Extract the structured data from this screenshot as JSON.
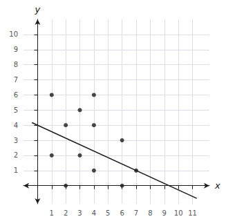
{
  "chart_data": {
    "type": "scatter",
    "xlabel": "x",
    "ylabel": "y",
    "xlim": [
      -1.0,
      12.2
    ],
    "ylim": [
      -1.2,
      11.0
    ],
    "xticks": [
      1,
      2,
      3,
      4,
      5,
      6,
      7,
      8,
      9,
      10,
      11
    ],
    "yticks": [
      1,
      2,
      3,
      4,
      5,
      6,
      7,
      8,
      9,
      10
    ],
    "grid": true,
    "series": [
      {
        "type": "line",
        "color": "#1a1a1a",
        "values": [
          [
            -0.4,
            4.171428571428
          ],
          [
            11.3,
            -0.842857142841
          ]
        ]
      },
      {
        "type": "scatter",
        "color": "#1a1a1a",
        "values": [
          [
            1,
            6
          ],
          [
            1,
            2
          ],
          [
            2,
            4
          ],
          [
            2,
            0
          ],
          [
            3,
            5
          ],
          [
            3,
            2
          ],
          [
            4,
            6
          ],
          [
            4,
            4
          ],
          [
            4,
            1
          ],
          [
            6,
            3
          ],
          [
            6,
            0
          ],
          [
            7,
            1
          ]
        ]
      }
    ]
  }
}
